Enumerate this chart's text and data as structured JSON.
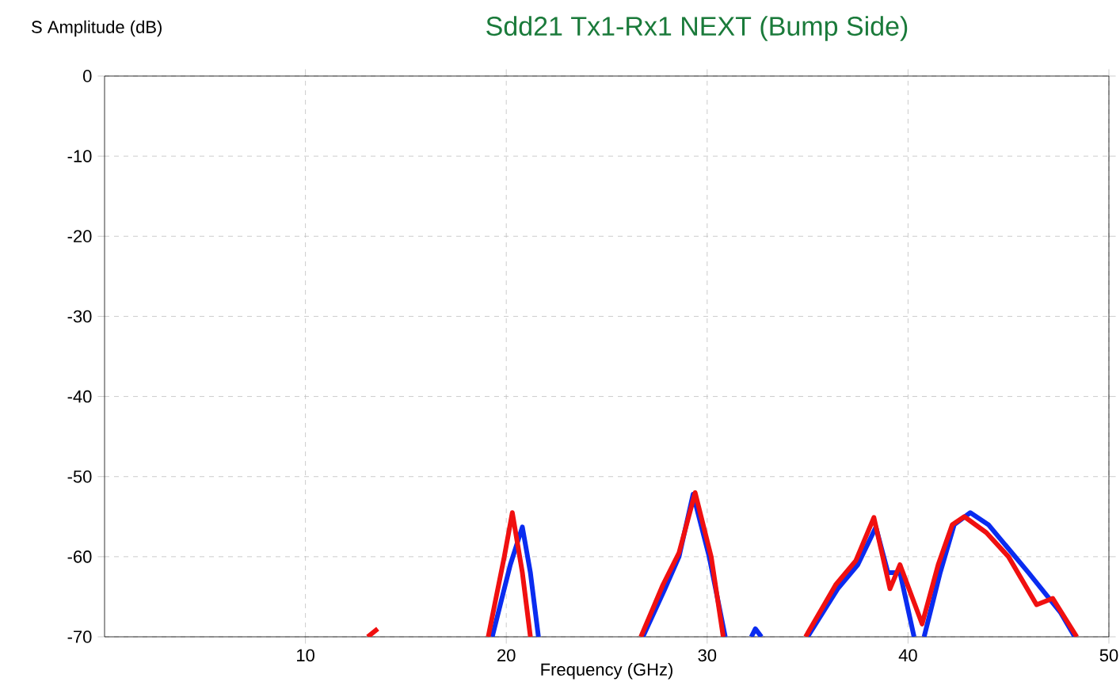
{
  "chart_data": {
    "type": "line",
    "title": "Sdd21 Tx1-Rx1 NEXT (Bump Side)",
    "xlabel": "Frequency (GHz)",
    "ylabel": "S Amplitude (dB)",
    "xlim": [
      0,
      50
    ],
    "ylim": [
      -70,
      0
    ],
    "xticks": [
      10,
      20,
      30,
      40,
      50
    ],
    "yticks": [
      0,
      -10,
      -20,
      -30,
      -40,
      -50,
      -60,
      -70
    ],
    "grid": true,
    "line_style": "solid",
    "marker": "none",
    "series": [
      {
        "color": "#0a2cf0",
        "x": [
          19.3,
          20.2,
          20.8,
          21.2,
          21.6,
          null,
          26.8,
          27.9,
          28.6,
          29.3,
          30.1,
          30.9,
          null,
          32.2,
          32.4,
          32.7,
          null,
          35.0,
          36.5,
          37.5,
          38.4,
          39.0,
          39.6,
          40.3,
          null,
          40.8,
          41.6,
          42.3,
          43.1,
          44.0,
          45.0,
          46.0,
          46.8,
          47.6,
          48.3
        ],
        "values": [
          -70,
          -61,
          -56.3,
          -62,
          -70,
          null,
          -70,
          -64,
          -60,
          -52.2,
          -60,
          -70,
          null,
          -70,
          -69,
          -70,
          null,
          -70,
          -64,
          -61,
          -56.3,
          -62,
          -62,
          -70,
          null,
          -70,
          -62,
          -56,
          -54.5,
          -56,
          -59,
          -62,
          -64.5,
          -67,
          -70
        ]
      },
      {
        "color": "#f01010",
        "x": [
          13.1,
          13.6,
          null,
          19.1,
          19.9,
          20.3,
          20.8,
          21.2,
          null,
          26.7,
          27.8,
          28.6,
          29.4,
          30.2,
          30.8,
          null,
          34.9,
          36.4,
          37.4,
          38.3,
          39.1,
          39.6,
          40.7,
          41.5,
          42.2,
          42.8,
          43.9,
          45.0,
          46.4,
          47.2,
          48.4
        ],
        "values": [
          -70,
          -69,
          null,
          -70,
          -60,
          -54.5,
          -62,
          -70,
          null,
          -70,
          -63.5,
          -59.5,
          -52,
          -60,
          -70,
          null,
          -70,
          -63.5,
          -60.5,
          -55.1,
          -64,
          -61,
          -68.4,
          -61,
          -56,
          -55,
          -57,
          -60,
          -66,
          -65.2,
          -70
        ]
      }
    ]
  }
}
